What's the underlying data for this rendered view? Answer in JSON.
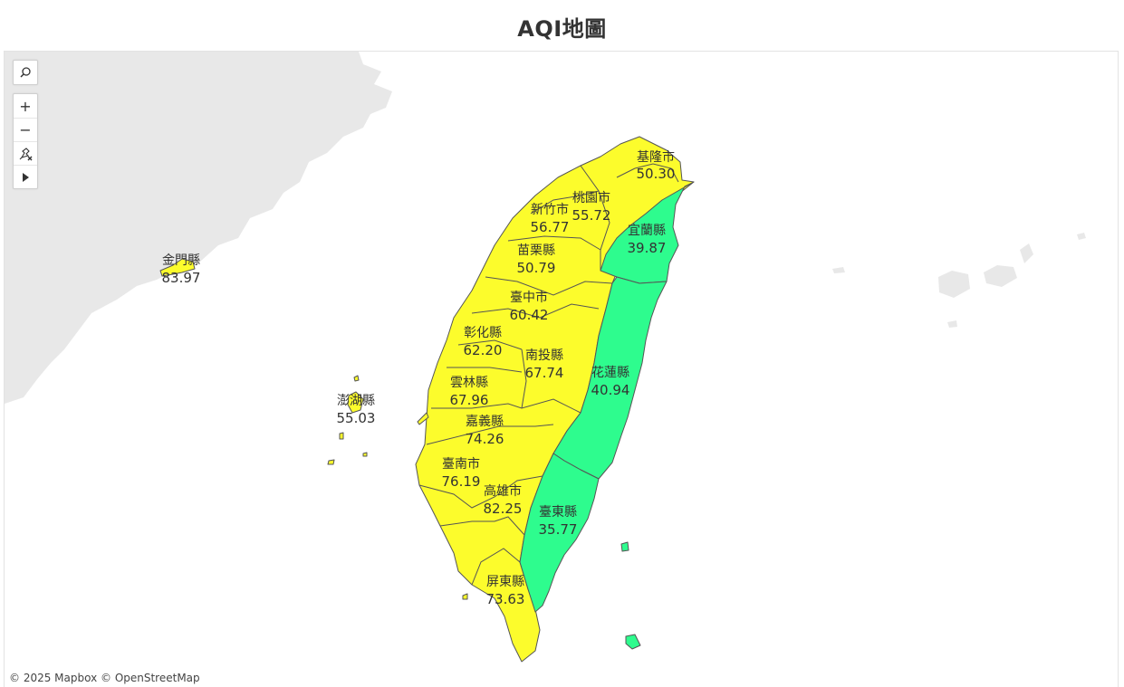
{
  "title": "AQI地圖",
  "attribution": "© 2025 Mapbox © OpenStreetMap",
  "colors": {
    "moderate": "#fcfc2c",
    "good": "#2efc8e",
    "land_background": "#e8e8e8"
  },
  "controls": {
    "search_icon": "search-icon",
    "zoom_in": "+",
    "zoom_out": "−",
    "pin_icon": "pin-clear-icon",
    "pan_icon": "play-arrow-icon"
  },
  "counties": {
    "keelung": {
      "name": "基隆市",
      "aqi": "50.30"
    },
    "taoyuan": {
      "name": "桃園市",
      "aqi": "55.72"
    },
    "hsinchu": {
      "name": "新竹市",
      "aqi": "56.77"
    },
    "yilan": {
      "name": "宜蘭縣",
      "aqi": "39.87"
    },
    "miaoli": {
      "name": "苗栗縣",
      "aqi": "50.79"
    },
    "kinmen": {
      "name": "金門縣",
      "aqi": "83.97"
    },
    "taichung": {
      "name": "臺中市",
      "aqi": "60.42"
    },
    "changhua": {
      "name": "彰化縣",
      "aqi": "62.20"
    },
    "nantou": {
      "name": "南投縣",
      "aqi": "67.74"
    },
    "hualien": {
      "name": "花蓮縣",
      "aqi": "40.94"
    },
    "yunlin": {
      "name": "雲林縣",
      "aqi": "67.96"
    },
    "penghu": {
      "name": "澎湖縣",
      "aqi": "55.03"
    },
    "chiayi": {
      "name": "嘉義縣",
      "aqi": "74.26"
    },
    "tainan": {
      "name": "臺南市",
      "aqi": "76.19"
    },
    "kaohsiung": {
      "name": "高雄市",
      "aqi": "82.25"
    },
    "taitung": {
      "name": "臺東縣",
      "aqi": "35.77"
    },
    "pingtung": {
      "name": "屏東縣",
      "aqi": "73.63"
    }
  }
}
